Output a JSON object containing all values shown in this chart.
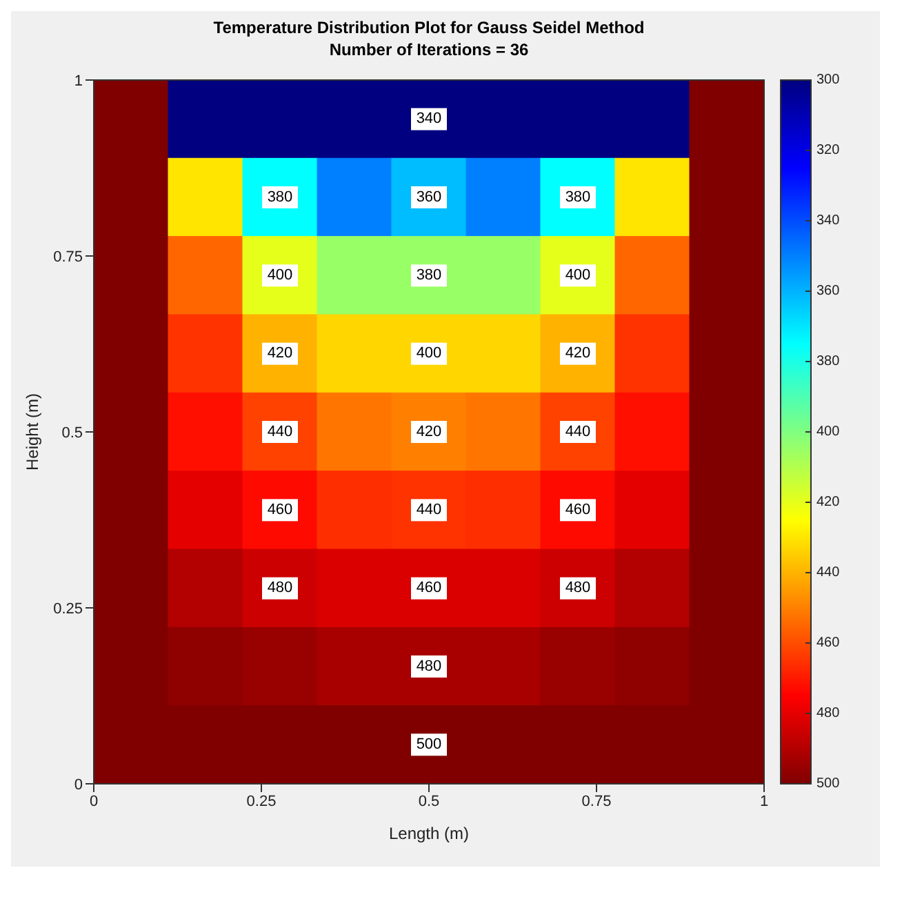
{
  "chart_data": {
    "type": "heatmap",
    "title": "Temperature Distribution Plot for Gauss Seidel Method",
    "subtitle": "Number of Iterations = 36",
    "xlabel": "Length (m)",
    "ylabel": "Height (m)",
    "cells": [
      [
        500,
        300,
        300,
        300,
        300,
        300,
        300,
        300,
        500
      ],
      [
        500,
        430,
        375,
        350,
        362,
        350,
        375,
        430,
        500
      ],
      [
        500,
        455,
        420,
        405,
        405,
        405,
        420,
        455,
        500
      ],
      [
        500,
        465,
        440,
        433,
        433,
        433,
        440,
        465,
        500
      ],
      [
        500,
        472,
        462,
        452,
        450,
        452,
        462,
        472,
        500
      ],
      [
        500,
        480,
        473,
        466,
        465,
        466,
        473,
        480,
        500
      ],
      [
        500,
        490,
        485,
        482,
        482,
        482,
        485,
        490,
        500
      ],
      [
        500,
        497,
        495,
        492,
        492,
        492,
        495,
        497,
        500
      ],
      [
        500,
        500,
        500,
        500,
        500,
        500,
        500,
        500,
        500
      ]
    ],
    "xlim": [
      0,
      1
    ],
    "xticks": [
      0,
      0.25,
      0.5,
      0.75,
      1
    ],
    "ylim": [
      0,
      1
    ],
    "yticks": [
      0,
      0.25,
      0.5,
      0.75,
      1
    ],
    "clim": [
      500,
      300
    ],
    "cticks": [
      300,
      320,
      340,
      360,
      380,
      400,
      420,
      440,
      460,
      480,
      500
    ],
    "annotations": [
      "340",
      "360",
      "380",
      "400",
      "420",
      "440",
      "460",
      "480",
      "500",
      "380",
      "380",
      "400",
      "400",
      "420",
      "420",
      "440",
      "440",
      "460",
      "460",
      "480",
      "480"
    ]
  }
}
